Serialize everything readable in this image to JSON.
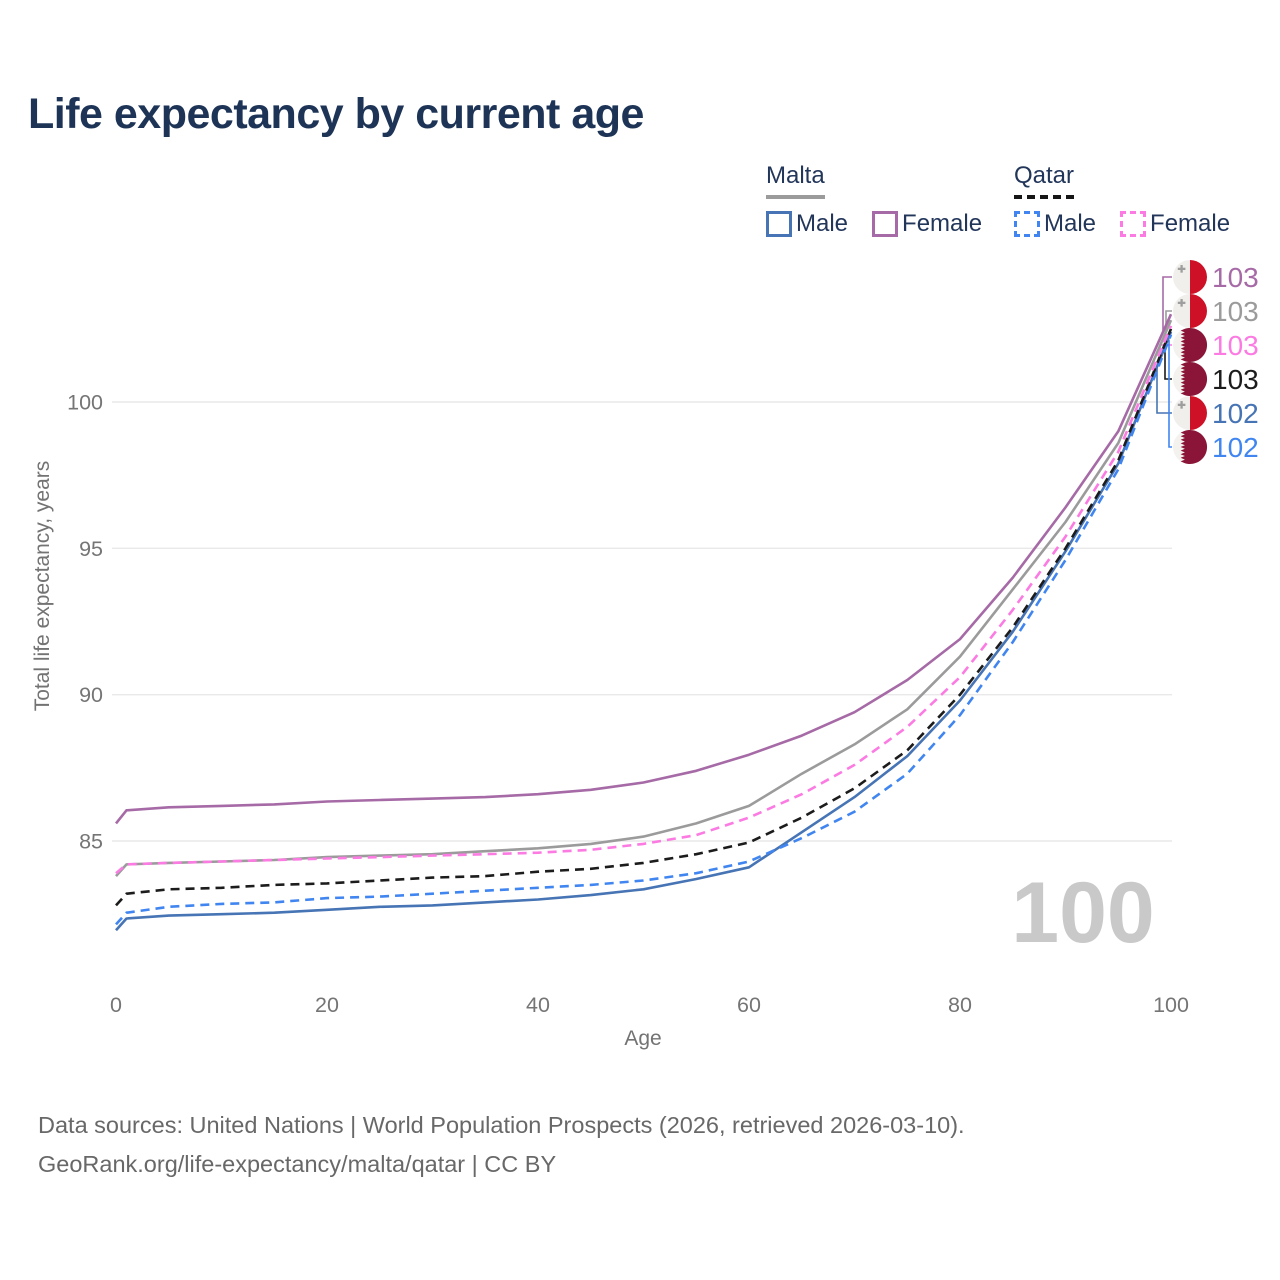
{
  "title": "Life expectancy by current age",
  "legend": {
    "groups": [
      {
        "label": "Malta",
        "line_style": "solid",
        "line_color": "#9b9b9b"
      },
      {
        "label": "Qatar",
        "line_style": "dashed",
        "line_color": "#161616"
      }
    ],
    "items": [
      {
        "group": "Malta",
        "label": "Male",
        "color": "#4674b4",
        "style": "solid"
      },
      {
        "group": "Malta",
        "label": "Female",
        "color": "#a66aa6",
        "style": "solid"
      },
      {
        "group": "Qatar",
        "label": "Male",
        "color": "#4186f0",
        "style": "dashed"
      },
      {
        "group": "Qatar",
        "label": "Female",
        "color": "#fb7be2",
        "style": "dashed"
      }
    ]
  },
  "watermark": "100",
  "footer": {
    "line1": "Data sources: United Nations | World Population Prospects (2026, retrieved 2026-03-10).",
    "line2": "GeoRank.org/life-expectancy/malta/qatar | CC BY"
  },
  "colors": {
    "title": "#1d3457",
    "axis_text": "#757575",
    "gridline": "#e9e9e9",
    "watermark": "#c9c9c9",
    "malta_flag_red": "#ce1126",
    "malta_flag_white": "#f1efeb",
    "qatar_flag_maroon": "#8a1538",
    "qatar_flag_white": "#f4f2ee"
  },
  "chart_data": {
    "type": "line",
    "title": "Life expectancy by current age",
    "xlabel": "Age",
    "ylabel": "Total life expectancy, years",
    "xlim": [
      0,
      100
    ],
    "ylim": [
      81.5,
      103.5
    ],
    "xticks": [
      0,
      20,
      40,
      60,
      80,
      100
    ],
    "yticks": [
      85,
      90,
      95,
      100
    ],
    "grid": "horizontal",
    "legend_position": "top-right",
    "x": [
      0,
      1,
      5,
      10,
      15,
      20,
      25,
      30,
      35,
      40,
      45,
      50,
      55,
      60,
      65,
      70,
      75,
      80,
      85,
      90,
      95,
      100
    ],
    "series": [
      {
        "name": "Malta Female",
        "country": "Malta",
        "sex": "Female",
        "color": "#a66aa6",
        "dash": "solid",
        "end_label": "103",
        "flag": "malta",
        "values": [
          85.6,
          86.05,
          86.15,
          86.2,
          86.25,
          86.35,
          86.4,
          86.45,
          86.5,
          86.6,
          86.75,
          87.0,
          87.4,
          87.95,
          88.6,
          89.4,
          90.5,
          91.9,
          94.0,
          96.4,
          99.0,
          103.0
        ]
      },
      {
        "name": "Malta Both sexes",
        "country": "Malta",
        "sex": "Both",
        "color": "#9b9b9b",
        "dash": "solid",
        "end_label": "103",
        "flag": "malta",
        "values": [
          83.8,
          84.2,
          84.25,
          84.3,
          84.35,
          84.45,
          84.5,
          84.55,
          84.65,
          84.75,
          84.9,
          85.15,
          85.6,
          86.2,
          87.3,
          88.3,
          89.5,
          91.3,
          93.6,
          95.9,
          98.6,
          102.8
        ]
      },
      {
        "name": "Qatar Female",
        "country": "Qatar",
        "sex": "Female",
        "color": "#fb7be2",
        "dash": "dashed",
        "end_label": "103",
        "flag": "qatar",
        "values": [
          83.9,
          84.2,
          84.25,
          84.3,
          84.35,
          84.4,
          84.45,
          84.5,
          84.55,
          84.6,
          84.7,
          84.9,
          85.2,
          85.8,
          86.6,
          87.6,
          88.9,
          90.6,
          92.9,
          95.4,
          98.3,
          102.6
        ]
      },
      {
        "name": "Qatar Both sexes",
        "country": "Qatar",
        "sex": "Both",
        "color": "#1c1c1c",
        "dash": "dashed",
        "end_label": "103",
        "flag": "qatar",
        "values": [
          82.8,
          83.2,
          83.35,
          83.4,
          83.5,
          83.55,
          83.65,
          83.75,
          83.8,
          83.95,
          84.05,
          84.25,
          84.55,
          84.95,
          85.8,
          86.8,
          88.1,
          90.0,
          92.3,
          95.0,
          98.0,
          102.5
        ]
      },
      {
        "name": "Malta Male",
        "country": "Malta",
        "sex": "Male",
        "color": "#4674b4",
        "dash": "solid",
        "end_label": "102",
        "flag": "malta",
        "values": [
          81.95,
          82.35,
          82.45,
          82.5,
          82.55,
          82.65,
          82.75,
          82.8,
          82.9,
          83.0,
          83.15,
          83.35,
          83.7,
          84.1,
          85.3,
          86.5,
          87.9,
          89.8,
          92.15,
          94.9,
          97.9,
          102.4
        ]
      },
      {
        "name": "Qatar Male",
        "country": "Qatar",
        "sex": "Male",
        "color": "#4186f0",
        "dash": "dashed",
        "end_label": "102",
        "flag": "qatar",
        "values": [
          82.15,
          82.55,
          82.75,
          82.85,
          82.9,
          83.05,
          83.1,
          83.2,
          83.3,
          83.4,
          83.5,
          83.65,
          83.9,
          84.3,
          85.1,
          86.0,
          87.3,
          89.3,
          91.8,
          94.6,
          97.7,
          102.3
        ]
      }
    ]
  }
}
